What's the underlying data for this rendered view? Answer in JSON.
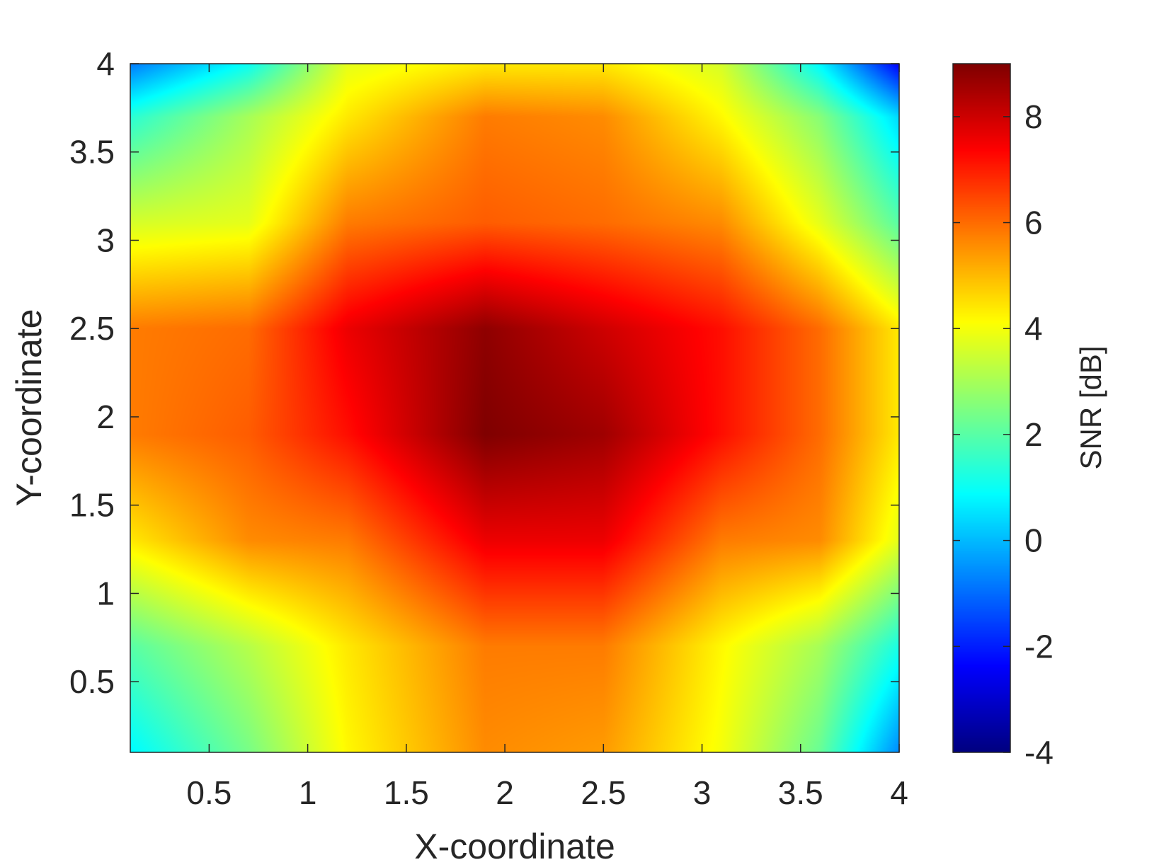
{
  "chart_data": {
    "type": "heatmap",
    "title": "",
    "xlabel": "X-coordinate",
    "ylabel": "Y-coordinate",
    "colorbar_label": "SNR [dB]",
    "colormap": "jet",
    "xlim": [
      0.1,
      4
    ],
    "ylim": [
      0.1,
      4
    ],
    "clim": [
      -4,
      9
    ],
    "x_ticks": [
      0.5,
      1,
      1.5,
      2,
      2.5,
      3,
      3.5,
      4
    ],
    "x_tick_labels": [
      "0.5",
      "1",
      "1.5",
      "2",
      "2.5",
      "3",
      "3.5",
      "4"
    ],
    "y_ticks": [
      0.5,
      1,
      1.5,
      2,
      2.5,
      3,
      3.5,
      4
    ],
    "y_tick_labels": [
      "0.5",
      "1",
      "1.5",
      "2",
      "2.5",
      "3",
      "3.5",
      "4"
    ],
    "colorbar_ticks": [
      -4,
      -2,
      0,
      2,
      4,
      6,
      8
    ],
    "colorbar_tick_labels": [
      "-4",
      "-2",
      "0",
      "2",
      "4",
      "6",
      "8"
    ],
    "grid": false,
    "x": [
      0.1,
      0.7,
      1.2,
      1.9,
      2.5,
      3.1,
      3.6,
      4.0
    ],
    "y": [
      0.1,
      0.7,
      1.3,
      1.9,
      2.5,
      3.1,
      3.7,
      4.0
    ],
    "z": [
      [
        0.8,
        2.4,
        4.2,
        5.6,
        5.4,
        4.0,
        2.2,
        -0.6
      ],
      [
        2.0,
        3.2,
        4.4,
        5.8,
        5.8,
        4.2,
        3.0,
        1.2
      ],
      [
        4.4,
        5.6,
        5.8,
        7.6,
        7.6,
        5.8,
        5.6,
        3.8
      ],
      [
        5.8,
        6.2,
        7.2,
        9.0,
        8.6,
        7.2,
        6.0,
        4.4
      ],
      [
        5.8,
        6.0,
        7.6,
        8.8,
        8.0,
        7.2,
        6.0,
        4.4
      ],
      [
        3.6,
        3.8,
        5.8,
        6.2,
        6.0,
        5.6,
        3.8,
        2.0
      ],
      [
        1.4,
        3.0,
        4.4,
        5.8,
        5.6,
        4.2,
        2.6,
        0.4
      ],
      [
        -0.8,
        1.0,
        3.8,
        4.4,
        4.4,
        3.6,
        0.8,
        -2.4
      ]
    ]
  }
}
